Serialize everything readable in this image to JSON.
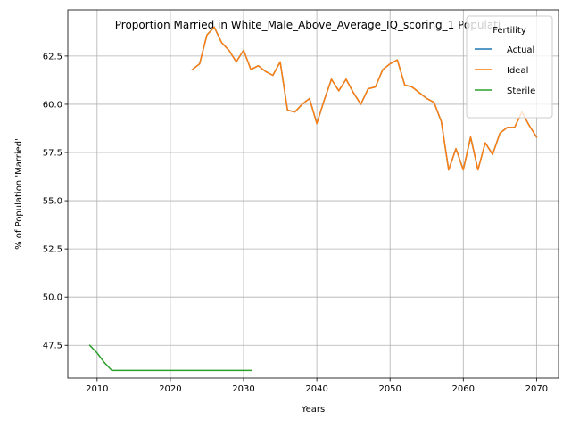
{
  "chart_data": {
    "type": "line",
    "title": "Proportion Married in White_Male_Above_Average_IQ_scoring_1 Populati",
    "xlabel": "Years",
    "ylabel": "% of Population 'Married'",
    "xlim": [
      2006,
      2073
    ],
    "ylim": [
      45.8,
      64.9
    ],
    "xticks": [
      2010,
      2020,
      2030,
      2040,
      2050,
      2060,
      2070
    ],
    "yticks": [
      47.5,
      50.0,
      52.5,
      55.0,
      57.5,
      60.0,
      62.5
    ],
    "ytick_labels": [
      "47.5",
      "50.0",
      "52.5",
      "55.0",
      "57.5",
      "60.0",
      "62.5"
    ],
    "grid": true,
    "legend": {
      "title": "Fertility",
      "placement": "top-right"
    },
    "series": [
      {
        "name": "Actual",
        "color": "#1f77b4",
        "x": [
          2023,
          2024,
          2025,
          2026,
          2027,
          2028,
          2029,
          2030,
          2031,
          2032,
          2033,
          2034,
          2035,
          2036,
          2037,
          2038,
          2039,
          2040,
          2041,
          2042,
          2043,
          2044,
          2045,
          2046,
          2047,
          2048,
          2049,
          2050,
          2051,
          2052,
          2053,
          2054,
          2055,
          2056,
          2057,
          2058,
          2059,
          2060,
          2061,
          2062,
          2063,
          2064,
          2065,
          2066,
          2067,
          2068,
          2069,
          2070
        ],
        "y": [
          61.8,
          62.1,
          63.6,
          64.0,
          63.2,
          62.8,
          62.2,
          62.8,
          61.8,
          62.0,
          61.7,
          61.5,
          62.2,
          59.7,
          59.6,
          60.0,
          60.3,
          59.0,
          60.2,
          61.3,
          60.7,
          61.3,
          60.6,
          60.0,
          60.8,
          60.9,
          61.8,
          62.1,
          62.3,
          61.0,
          60.9,
          60.6,
          60.3,
          60.1,
          59.1,
          56.6,
          57.7,
          56.6,
          58.3,
          56.6,
          58.0,
          57.4,
          58.5,
          58.8,
          58.8,
          59.6,
          58.9,
          58.3
        ]
      },
      {
        "name": "Ideal",
        "color": "#ff7f0e",
        "x": [
          2023,
          2024,
          2025,
          2026,
          2027,
          2028,
          2029,
          2030,
          2031,
          2032,
          2033,
          2034,
          2035,
          2036,
          2037,
          2038,
          2039,
          2040,
          2041,
          2042,
          2043,
          2044,
          2045,
          2046,
          2047,
          2048,
          2049,
          2050,
          2051,
          2052,
          2053,
          2054,
          2055,
          2056,
          2057,
          2058,
          2059,
          2060,
          2061,
          2062,
          2063,
          2064,
          2065,
          2066,
          2067,
          2068,
          2069,
          2070
        ],
        "y": [
          61.8,
          62.1,
          63.6,
          64.0,
          63.2,
          62.8,
          62.2,
          62.8,
          61.8,
          62.0,
          61.7,
          61.5,
          62.2,
          59.7,
          59.6,
          60.0,
          60.3,
          59.0,
          60.2,
          61.3,
          60.7,
          61.3,
          60.6,
          60.0,
          60.8,
          60.9,
          61.8,
          62.1,
          62.3,
          61.0,
          60.9,
          60.6,
          60.3,
          60.1,
          59.1,
          56.6,
          57.7,
          56.6,
          58.3,
          56.6,
          58.0,
          57.4,
          58.5,
          58.8,
          58.8,
          59.6,
          58.9,
          58.3
        ]
      },
      {
        "name": "Sterile",
        "color": "#2ca02c",
        "x": [
          2009,
          2010,
          2011,
          2012,
          2013,
          2014,
          2015,
          2016,
          2017,
          2018,
          2019,
          2020,
          2021,
          2022,
          2023,
          2024,
          2025,
          2026,
          2027,
          2028,
          2029,
          2030,
          2031
        ],
        "y": [
          47.5,
          47.1,
          46.6,
          46.2,
          46.2,
          46.2,
          46.2,
          46.2,
          46.2,
          46.2,
          46.2,
          46.2,
          46.2,
          46.2,
          46.2,
          46.2,
          46.2,
          46.2,
          46.2,
          46.2,
          46.2,
          46.2,
          46.2
        ]
      }
    ]
  }
}
